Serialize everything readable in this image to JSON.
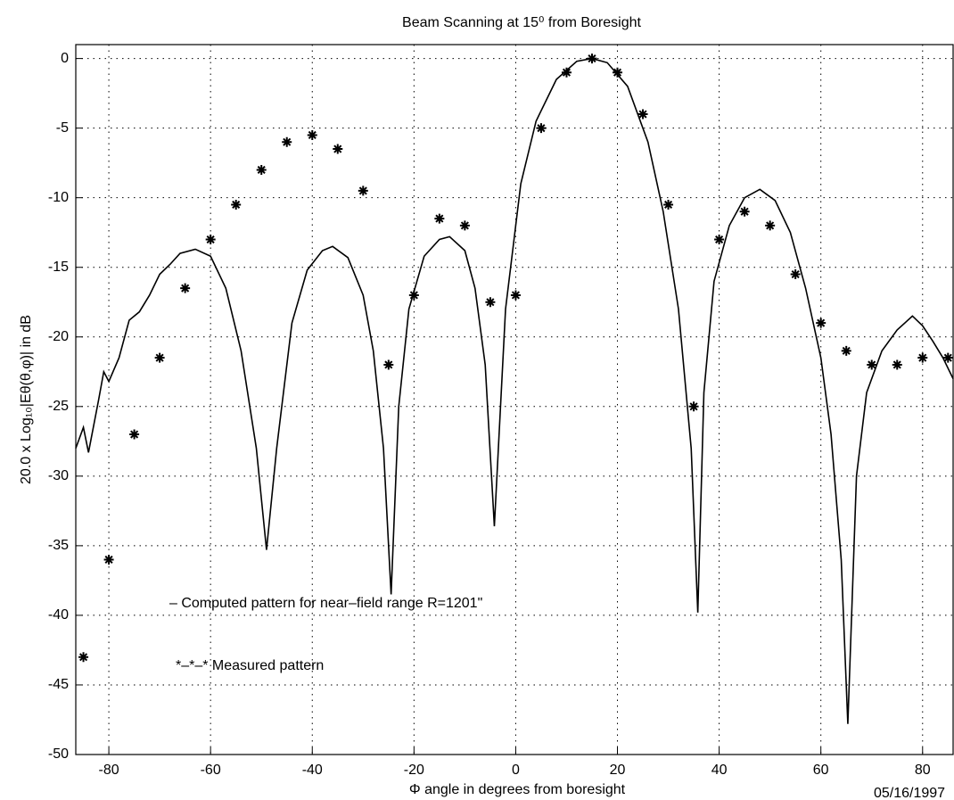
{
  "chart_data": {
    "type": "line",
    "title": "Beam Scanning at 15⁰ from Boresight",
    "xlabel": "Φ angle in degrees from boresight",
    "ylabel": "20.0 x Log₁₀|Eθ(θ,φ)| in dB",
    "annotations": [
      "– Computed pattern for near–field range R=1201\"",
      "*–*–* Measured pattern",
      "05/16/1997"
    ],
    "xlim": [
      -86.5,
      86
    ],
    "ylim": [
      -50,
      1
    ],
    "xticks": [
      -80,
      -60,
      -40,
      -20,
      0,
      20,
      40,
      60,
      80
    ],
    "yticks": [
      0,
      -5,
      -10,
      -15,
      -20,
      -25,
      -30,
      -35,
      -40,
      -45,
      -50
    ],
    "grid": true,
    "series": [
      {
        "type": "line",
        "color": "#000000",
        "x": [
          -86.5,
          -85,
          -84,
          -82,
          -81,
          -80,
          -78,
          -76,
          -74,
          -72,
          -70,
          -68,
          -66,
          -63,
          -60,
          -57,
          -54,
          -51,
          -49,
          -47,
          -44,
          -41,
          -38,
          -36,
          -33,
          -30,
          -28,
          -26,
          -24.5,
          -23,
          -21,
          -18,
          -15,
          -13,
          -10,
          -8,
          -6,
          -4.2,
          -2,
          1,
          4,
          8,
          12,
          15,
          18,
          22,
          26,
          29,
          32,
          34.5,
          35.8,
          37,
          39,
          42,
          45,
          48,
          51,
          54,
          57,
          60,
          62,
          64,
          65.3,
          67,
          69,
          72,
          75,
          78,
          80,
          82,
          84,
          86
        ],
        "values": [
          -28,
          -26.5,
          -28.3,
          -24.5,
          -22.5,
          -23.2,
          -21.5,
          -18.8,
          -18.2,
          -17,
          -15.5,
          -14.8,
          -14,
          -13.7,
          -14.2,
          -16.5,
          -21,
          -28,
          -35.3,
          -28,
          -19,
          -15.2,
          -13.8,
          -13.5,
          -14.3,
          -17,
          -21,
          -28,
          -38.5,
          -25,
          -18,
          -14.2,
          -13,
          -12.8,
          -13.8,
          -16.5,
          -22,
          -33.6,
          -18,
          -9,
          -4.5,
          -1.5,
          -0.2,
          0,
          -0.3,
          -2,
          -6,
          -11,
          -18,
          -28,
          -39.8,
          -24,
          -16,
          -12,
          -10,
          -9.4,
          -10.2,
          -12.5,
          -16.5,
          -21.5,
          -27,
          -36,
          -47.8,
          -30,
          -24,
          -21,
          -19.5,
          -18.5,
          -19.2,
          -20.3,
          -21.5,
          -23
        ]
      },
      {
        "type": "scatter",
        "color": "#000000",
        "x": [
          -85,
          -80,
          -75,
          -70,
          -65,
          -60,
          -55,
          -50,
          -45,
          -40,
          -35,
          -30,
          -25,
          -20,
          -15,
          -10,
          -5,
          0,
          5,
          10,
          15,
          20,
          25,
          30,
          35,
          40,
          45,
          50,
          55,
          60,
          65,
          70,
          75,
          80,
          85
        ],
        "values": [
          -43,
          -36,
          -27,
          -21.5,
          -16.5,
          -13,
          -10.5,
          -8,
          -6,
          -5.5,
          -6.5,
          -9.5,
          -22,
          -17,
          -11.5,
          -12,
          -17.5,
          -17,
          -5,
          -1,
          0,
          -1,
          -4,
          -10.5,
          -25,
          -13,
          -11,
          -12,
          -15.5,
          -19,
          -21,
          -22,
          -22,
          -21.5,
          -21.5
        ]
      }
    ]
  }
}
